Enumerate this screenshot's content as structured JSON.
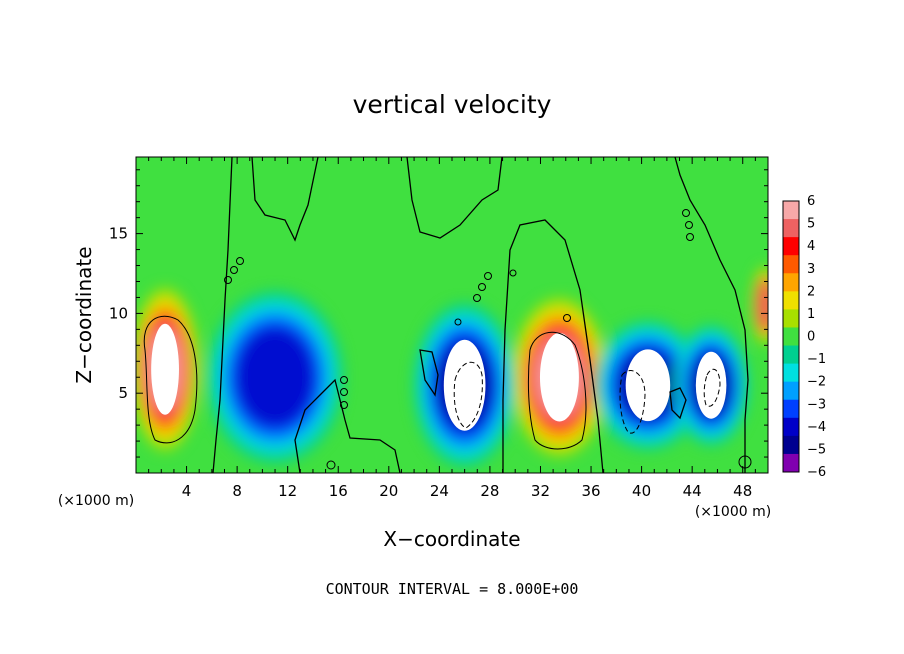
{
  "chart_data": {
    "type": "heatmap",
    "title": "vertical velocity",
    "xlabel": "X−coordinate",
    "ylabel": "Z−coordinate",
    "x_unit_label": "(×1000 m)",
    "y_unit_label": "(×1000 m)",
    "x_ticks": [
      "4",
      "8",
      "12",
      "16",
      "20",
      "24",
      "28",
      "32",
      "36",
      "40",
      "44",
      "48"
    ],
    "x_tick_values": [
      4,
      8,
      12,
      16,
      20,
      24,
      28,
      32,
      36,
      40,
      44,
      48
    ],
    "y_ticks": [
      "5",
      "10",
      "15"
    ],
    "y_tick_values": [
      5,
      10,
      15
    ],
    "xlim": [
      0,
      50
    ],
    "ylim": [
      0,
      19.8
    ],
    "footer": "CONTOUR INTERVAL = 8.000E+00",
    "colorbar": {
      "labels": [
        "6",
        "5",
        "4",
        "3",
        "2",
        "1",
        "0",
        "−1",
        "−2",
        "−3",
        "−4",
        "−5",
        "−6"
      ],
      "colors": [
        "#f7a8a8",
        "#ee6262",
        "#ff0000",
        "#ff5a00",
        "#ffa500",
        "#f0e000",
        "#a8e000",
        "#40e040",
        "#00d090",
        "#00e0e0",
        "#00a0ff",
        "#0040ff",
        "#0000c8",
        "#000090",
        "#8000b0"
      ]
    },
    "features": [
      {
        "kind": "updraft",
        "x_center": 2.3,
        "z_center": 6.5,
        "x_radius": 2.0,
        "z_radius": 3.8,
        "peak": 8
      },
      {
        "kind": "updraft",
        "x_center": 33.5,
        "z_center": 6.0,
        "x_radius": 2.8,
        "z_radius": 3.7,
        "peak": 8
      },
      {
        "kind": "updraft",
        "x_center": 49.8,
        "z_center": 10.5,
        "x_radius": 0.8,
        "z_radius": 1.8,
        "peak": 5
      },
      {
        "kind": "downdraft",
        "x_center": 11.0,
        "z_center": 6.0,
        "x_radius": 4.0,
        "z_radius": 4.0,
        "peak": -5
      },
      {
        "kind": "downdraft",
        "x_center": 26.0,
        "z_center": 5.5,
        "x_radius": 3.0,
        "z_radius": 3.8,
        "peak": -8
      },
      {
        "kind": "downdraft",
        "x_center": 40.5,
        "z_center": 5.5,
        "x_radius": 3.2,
        "z_radius": 3.0,
        "peak": -7
      },
      {
        "kind": "downdraft",
        "x_center": 45.5,
        "z_center": 5.5,
        "x_radius": 2.2,
        "z_radius": 2.8,
        "peak": -7
      }
    ]
  }
}
